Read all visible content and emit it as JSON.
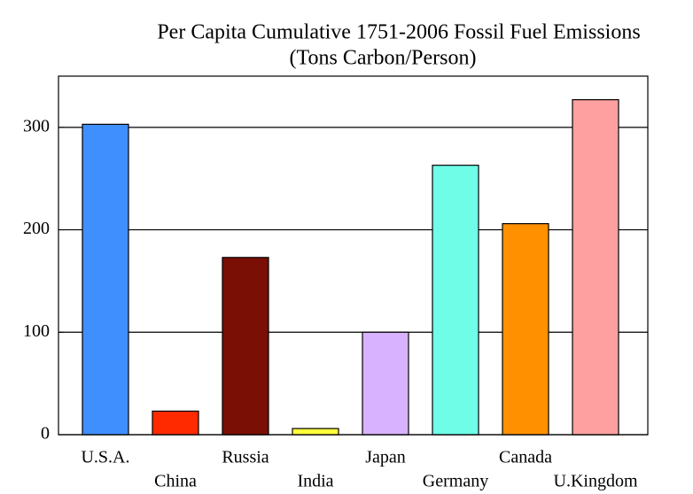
{
  "chart_data": {
    "type": "bar",
    "title": "Per Capita Cumulative 1751-2006 Fossil Fuel Emissions",
    "subtitle": "(Tons Carbon/Person)",
    "categories": [
      "U.S.A.",
      "China",
      "Russia",
      "India",
      "Japan",
      "Germany",
      "Canada",
      "U.Kingdom"
    ],
    "values": [
      303,
      23,
      173,
      6,
      100,
      263,
      206,
      327
    ],
    "colors": [
      "#3f8fff",
      "#ff2a00",
      "#7a1005",
      "#ffff3a",
      "#d8b2ff",
      "#70fde8",
      "#ff9000",
      "#ffa0a0"
    ],
    "ylim": [
      0,
      350
    ],
    "yticks": [
      0,
      100,
      200,
      300
    ],
    "grid": true
  }
}
